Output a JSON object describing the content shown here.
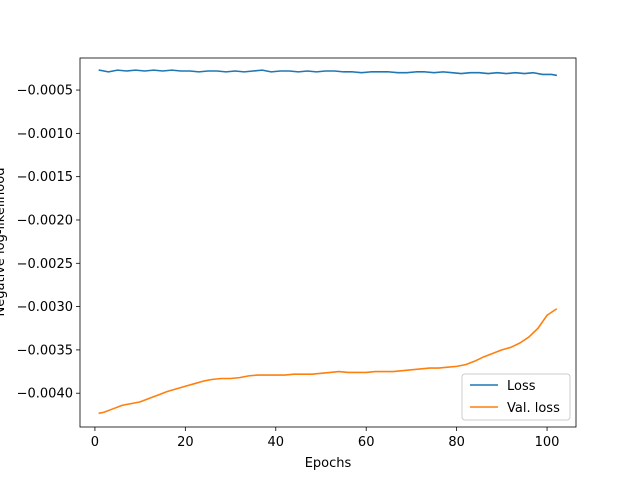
{
  "chart_data": {
    "type": "line",
    "title": "",
    "xlabel": "Epochs",
    "ylabel": "Negative log-likelihood",
    "xlim": [
      -3.3,
      106.4
    ],
    "ylim": [
      -0.00439,
      -0.00013
    ],
    "xticks": [
      0,
      20,
      40,
      60,
      80,
      100
    ],
    "xtick_labels": [
      "0",
      "20",
      "40",
      "60",
      "80",
      "100"
    ],
    "yticks": [
      -0.0005,
      -0.001,
      -0.0015,
      -0.002,
      -0.0025,
      -0.003,
      -0.0035,
      -0.004
    ],
    "ytick_labels": [
      "−0.0005",
      "−0.0010",
      "−0.0015",
      "−0.0020",
      "−0.0025",
      "−0.0030",
      "−0.0035",
      "−0.0040"
    ],
    "grid": false,
    "legend_position": "lower right",
    "series": [
      {
        "name": "Loss",
        "color": "#1f77b4",
        "x": [
          1,
          3,
          5,
          7,
          9,
          11,
          13,
          15,
          17,
          19,
          21,
          23,
          25,
          27,
          29,
          31,
          33,
          35,
          37,
          39,
          41,
          43,
          45,
          47,
          49,
          51,
          53,
          55,
          57,
          59,
          61,
          63,
          65,
          67,
          69,
          71,
          73,
          75,
          77,
          79,
          81,
          83,
          85,
          87,
          89,
          91,
          93,
          95,
          97,
          99,
          101,
          102
        ],
        "y": [
          -0.00027,
          -0.00029,
          -0.00027,
          -0.00028,
          -0.00027,
          -0.00028,
          -0.00027,
          -0.00028,
          -0.00027,
          -0.00028,
          -0.00028,
          -0.00029,
          -0.00028,
          -0.00028,
          -0.00029,
          -0.00028,
          -0.00029,
          -0.00028,
          -0.00027,
          -0.00029,
          -0.00028,
          -0.00028,
          -0.00029,
          -0.00028,
          -0.00029,
          -0.00028,
          -0.00028,
          -0.00029,
          -0.00029,
          -0.0003,
          -0.00029,
          -0.00029,
          -0.00029,
          -0.0003,
          -0.0003,
          -0.00029,
          -0.00029,
          -0.0003,
          -0.00029,
          -0.0003,
          -0.00031,
          -0.0003,
          -0.0003,
          -0.00031,
          -0.0003,
          -0.00031,
          -0.0003,
          -0.00031,
          -0.0003,
          -0.00032,
          -0.00032,
          -0.00033
        ]
      },
      {
        "name": "Val. loss",
        "color": "#ff7f0e",
        "x": [
          1,
          2,
          4,
          6,
          8,
          10,
          12,
          14,
          16,
          18,
          20,
          22,
          24,
          26,
          28,
          30,
          32,
          34,
          36,
          38,
          40,
          42,
          44,
          46,
          48,
          50,
          52,
          54,
          56,
          58,
          60,
          62,
          64,
          66,
          68,
          70,
          72,
          74,
          76,
          78,
          80,
          82,
          84,
          86,
          88,
          90,
          92,
          94,
          96,
          98,
          100,
          102
        ],
        "y": [
          -0.00423,
          -0.00422,
          -0.00418,
          -0.00414,
          -0.00412,
          -0.0041,
          -0.00406,
          -0.00402,
          -0.00398,
          -0.00395,
          -0.00392,
          -0.00389,
          -0.00386,
          -0.00384,
          -0.00383,
          -0.00383,
          -0.00382,
          -0.0038,
          -0.00379,
          -0.00379,
          -0.00379,
          -0.00379,
          -0.00378,
          -0.00378,
          -0.00378,
          -0.00377,
          -0.00376,
          -0.00375,
          -0.00376,
          -0.00376,
          -0.00376,
          -0.00375,
          -0.00375,
          -0.00375,
          -0.00374,
          -0.00373,
          -0.00372,
          -0.00371,
          -0.00371,
          -0.0037,
          -0.00369,
          -0.00367,
          -0.00363,
          -0.00358,
          -0.00354,
          -0.0035,
          -0.00347,
          -0.00342,
          -0.00335,
          -0.00325,
          -0.0031,
          -0.00303
        ]
      }
    ]
  }
}
